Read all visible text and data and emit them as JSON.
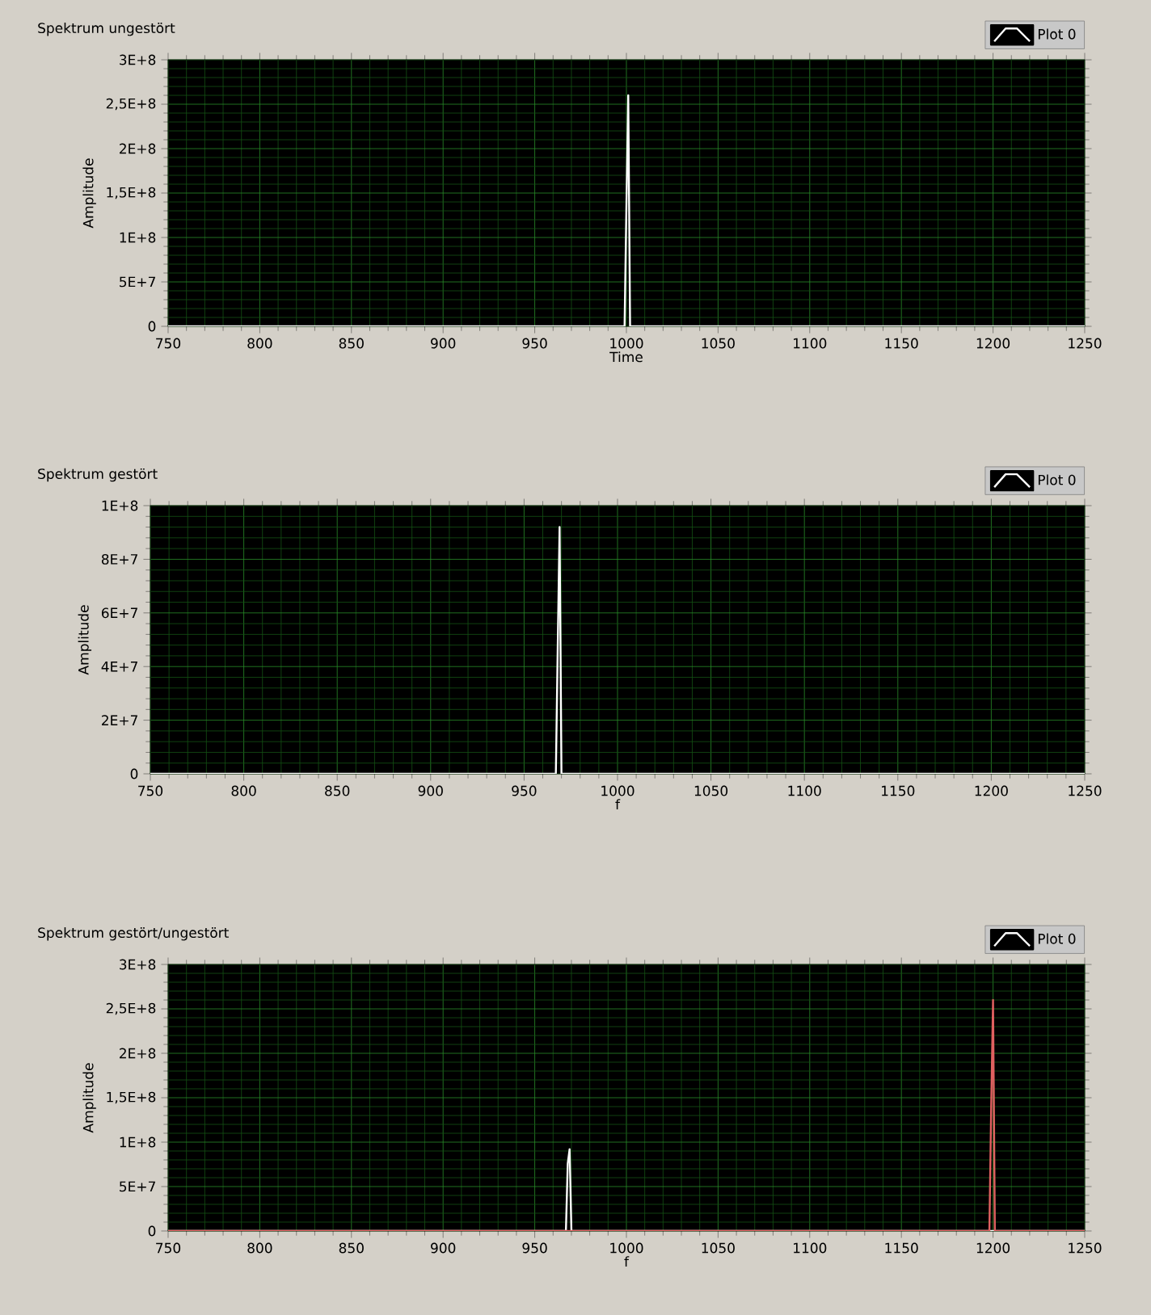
{
  "chart_data": [
    {
      "type": "line",
      "title": "Spektrum ungestört",
      "xlabel": "Time",
      "ylabel": "Amplitude",
      "grid": true,
      "legend": "top right",
      "xlim": [
        750,
        1250
      ],
      "ylim": [
        0,
        300000000
      ],
      "xticks": [
        750,
        {
          "value": 760,
          "label": null
        },
        {
          "value": 770,
          "label": null
        },
        {
          "value": 780,
          "label": null
        },
        {
          "value": 790,
          "label": null
        },
        800,
        {
          "value": 810,
          "label": null
        },
        {
          "value": 820,
          "label": null
        },
        {
          "value": 830,
          "label": null
        },
        {
          "value": 840,
          "label": null
        },
        850,
        {
          "value": 860,
          "label": null
        },
        {
          "value": 870,
          "label": null
        },
        {
          "value": 880,
          "label": null
        },
        {
          "value": 890,
          "label": null
        },
        900,
        {
          "value": 910,
          "label": null
        },
        {
          "value": 920,
          "label": null
        },
        {
          "value": 930,
          "label": null
        },
        {
          "value": 940,
          "label": null
        },
        950,
        {
          "value": 960,
          "label": null
        },
        {
          "value": 970,
          "label": null
        },
        {
          "value": 980,
          "label": null
        },
        {
          "value": 990,
          "label": null
        },
        1000,
        {
          "value": 1010,
          "label": null
        },
        {
          "value": 1020,
          "label": null
        },
        {
          "value": 1030,
          "label": null
        },
        {
          "value": 1040,
          "label": null
        },
        1050,
        {
          "value": 1060,
          "label": null
        },
        {
          "value": 1070,
          "label": null
        },
        {
          "value": 1080,
          "label": null
        },
        {
          "value": 1090,
          "label": null
        },
        1100,
        {
          "value": 1110,
          "label": null
        },
        {
          "value": 1120,
          "label": null
        },
        {
          "value": 1130,
          "label": null
        },
        {
          "value": 1140,
          "label": null
        },
        1150,
        {
          "value": 1160,
          "label": null
        },
        {
          "value": 1170,
          "label": null
        },
        {
          "value": 1180,
          "label": null
        },
        {
          "value": 1190,
          "label": null
        },
        1200,
        {
          "value": 1210,
          "label": null
        },
        {
          "value": 1220,
          "label": null
        },
        {
          "value": 1230,
          "label": null
        },
        {
          "value": 1240,
          "label": null
        },
        1250
      ],
      "yticks": [
        0,
        {
          "value": 10000000,
          "label": null
        },
        {
          "value": 20000000,
          "label": null
        },
        {
          "value": 30000000,
          "label": null
        },
        {
          "value": 40000000,
          "label": null
        },
        {
          "value": 50000000,
          "label": "5E+7"
        },
        {
          "value": 60000000,
          "label": null
        },
        {
          "value": 70000000,
          "label": null
        },
        {
          "value": 80000000,
          "label": null
        },
        {
          "value": 90000000,
          "label": null
        },
        {
          "value": 100000000,
          "label": "1E+8"
        },
        {
          "value": 110000000,
          "label": null
        },
        {
          "value": 120000000,
          "label": null
        },
        {
          "value": 130000000,
          "label": null
        },
        {
          "value": 140000000,
          "label": null
        },
        {
          "value": 150000000,
          "label": "1,5E+8"
        },
        {
          "value": 160000000,
          "label": null
        },
        {
          "value": 170000000,
          "label": null
        },
        {
          "value": 180000000,
          "label": null
        },
        {
          "value": 190000000,
          "label": null
        },
        {
          "value": 200000000,
          "label": "2E+8"
        },
        {
          "value": 210000000,
          "label": null
        },
        {
          "value": 220000000,
          "label": null
        },
        {
          "value": 230000000,
          "label": null
        },
        {
          "value": 240000000,
          "label": null
        },
        {
          "value": 250000000,
          "label": "2,5E+8"
        },
        {
          "value": 260000000,
          "label": null
        },
        {
          "value": 270000000,
          "label": null
        },
        {
          "value": 280000000,
          "label": null
        },
        {
          "value": 290000000,
          "label": null
        },
        {
          "value": 300000000,
          "label": "3E+8"
        }
      ],
      "series": [
        {
          "name": "Plot 0",
          "color": "#ffffff",
          "x": [
            750,
            999,
            1000,
            1001,
            1002,
            1250
          ],
          "values": [
            0,
            0,
            135000000,
            260000000,
            0,
            0
          ]
        }
      ]
    },
    {
      "type": "line",
      "title": "Spektrum gestört",
      "xlabel": "f",
      "ylabel": "Amplitude",
      "grid": true,
      "legend": "top right",
      "xlim": [
        750,
        1250
      ],
      "ylim": [
        0,
        100000000
      ],
      "xticks": [
        750,
        {
          "value": 760,
          "label": null
        },
        {
          "value": 770,
          "label": null
        },
        {
          "value": 780,
          "label": null
        },
        {
          "value": 790,
          "label": null
        },
        800,
        {
          "value": 810,
          "label": null
        },
        {
          "value": 820,
          "label": null
        },
        {
          "value": 830,
          "label": null
        },
        {
          "value": 840,
          "label": null
        },
        850,
        {
          "value": 860,
          "label": null
        },
        {
          "value": 870,
          "label": null
        },
        {
          "value": 880,
          "label": null
        },
        {
          "value": 890,
          "label": null
        },
        900,
        {
          "value": 910,
          "label": null
        },
        {
          "value": 920,
          "label": null
        },
        {
          "value": 930,
          "label": null
        },
        {
          "value": 940,
          "label": null
        },
        950,
        {
          "value": 960,
          "label": null
        },
        {
          "value": 970,
          "label": null
        },
        {
          "value": 980,
          "label": null
        },
        {
          "value": 990,
          "label": null
        },
        1000,
        {
          "value": 1010,
          "label": null
        },
        {
          "value": 1020,
          "label": null
        },
        {
          "value": 1030,
          "label": null
        },
        {
          "value": 1040,
          "label": null
        },
        1050,
        {
          "value": 1060,
          "label": null
        },
        {
          "value": 1070,
          "label": null
        },
        {
          "value": 1080,
          "label": null
        },
        {
          "value": 1090,
          "label": null
        },
        1100,
        {
          "value": 1110,
          "label": null
        },
        {
          "value": 1120,
          "label": null
        },
        {
          "value": 1130,
          "label": null
        },
        {
          "value": 1140,
          "label": null
        },
        1150,
        {
          "value": 1160,
          "label": null
        },
        {
          "value": 1170,
          "label": null
        },
        {
          "value": 1180,
          "label": null
        },
        {
          "value": 1190,
          "label": null
        },
        1200,
        {
          "value": 1210,
          "label": null
        },
        {
          "value": 1220,
          "label": null
        },
        {
          "value": 1230,
          "label": null
        },
        {
          "value": 1240,
          "label": null
        },
        1250
      ],
      "yticks": [
        0,
        {
          "value": 4000000,
          "label": null
        },
        {
          "value": 8000000,
          "label": null
        },
        {
          "value": 12000000,
          "label": null
        },
        {
          "value": 16000000,
          "label": null
        },
        {
          "value": 20000000,
          "label": "2E+7"
        },
        {
          "value": 24000000,
          "label": null
        },
        {
          "value": 28000000,
          "label": null
        },
        {
          "value": 32000000,
          "label": null
        },
        {
          "value": 36000000,
          "label": null
        },
        {
          "value": 40000000,
          "label": "4E+7"
        },
        {
          "value": 44000000,
          "label": null
        },
        {
          "value": 48000000,
          "label": null
        },
        {
          "value": 52000000,
          "label": null
        },
        {
          "value": 56000000,
          "label": null
        },
        {
          "value": 60000000,
          "label": "6E+7"
        },
        {
          "value": 64000000,
          "label": null
        },
        {
          "value": 68000000,
          "label": null
        },
        {
          "value": 72000000,
          "label": null
        },
        {
          "value": 76000000,
          "label": null
        },
        {
          "value": 80000000,
          "label": "8E+7"
        },
        {
          "value": 84000000,
          "label": null
        },
        {
          "value": 88000000,
          "label": null
        },
        {
          "value": 92000000,
          "label": null
        },
        {
          "value": 96000000,
          "label": null
        },
        {
          "value": 100000000,
          "label": "1E+8"
        }
      ],
      "series": [
        {
          "name": "Plot 0",
          "color": "#ffffff",
          "x": [
            750,
            967,
            968,
            969,
            970,
            1250
          ],
          "values": [
            0,
            0,
            47000000,
            92000000,
            0,
            0
          ]
        }
      ]
    },
    {
      "type": "line",
      "title": "Spektrum gestört/ungestört",
      "xlabel": "f",
      "ylabel": "Amplitude",
      "grid": true,
      "legend": "top right",
      "xlim": [
        750,
        1250
      ],
      "ylim": [
        0,
        300000000
      ],
      "xticks": [
        750,
        {
          "value": 760,
          "label": null
        },
        {
          "value": 770,
          "label": null
        },
        {
          "value": 780,
          "label": null
        },
        {
          "value": 790,
          "label": null
        },
        800,
        {
          "value": 810,
          "label": null
        },
        {
          "value": 820,
          "label": null
        },
        {
          "value": 830,
          "label": null
        },
        {
          "value": 840,
          "label": null
        },
        850,
        {
          "value": 860,
          "label": null
        },
        {
          "value": 870,
          "label": null
        },
        {
          "value": 880,
          "label": null
        },
        {
          "value": 890,
          "label": null
        },
        900,
        {
          "value": 910,
          "label": null
        },
        {
          "value": 920,
          "label": null
        },
        {
          "value": 930,
          "label": null
        },
        {
          "value": 940,
          "label": null
        },
        950,
        {
          "value": 960,
          "label": null
        },
        {
          "value": 970,
          "label": null
        },
        {
          "value": 980,
          "label": null
        },
        {
          "value": 990,
          "label": null
        },
        1000,
        {
          "value": 1010,
          "label": null
        },
        {
          "value": 1020,
          "label": null
        },
        {
          "value": 1030,
          "label": null
        },
        {
          "value": 1040,
          "label": null
        },
        1050,
        {
          "value": 1060,
          "label": null
        },
        {
          "value": 1070,
          "label": null
        },
        {
          "value": 1080,
          "label": null
        },
        {
          "value": 1090,
          "label": null
        },
        1100,
        {
          "value": 1110,
          "label": null
        },
        {
          "value": 1120,
          "label": null
        },
        {
          "value": 1130,
          "label": null
        },
        {
          "value": 1140,
          "label": null
        },
        1150,
        {
          "value": 1160,
          "label": null
        },
        {
          "value": 1170,
          "label": null
        },
        {
          "value": 1180,
          "label": null
        },
        {
          "value": 1190,
          "label": null
        },
        1200,
        {
          "value": 1210,
          "label": null
        },
        {
          "value": 1220,
          "label": null
        },
        {
          "value": 1230,
          "label": null
        },
        {
          "value": 1240,
          "label": null
        },
        1250
      ],
      "yticks": [
        0,
        {
          "value": 10000000,
          "label": null
        },
        {
          "value": 20000000,
          "label": null
        },
        {
          "value": 30000000,
          "label": null
        },
        {
          "value": 40000000,
          "label": null
        },
        {
          "value": 50000000,
          "label": "5E+7"
        },
        {
          "value": 60000000,
          "label": null
        },
        {
          "value": 70000000,
          "label": null
        },
        {
          "value": 80000000,
          "label": null
        },
        {
          "value": 90000000,
          "label": null
        },
        {
          "value": 100000000,
          "label": "1E+8"
        },
        {
          "value": 110000000,
          "label": null
        },
        {
          "value": 120000000,
          "label": null
        },
        {
          "value": 130000000,
          "label": null
        },
        {
          "value": 140000000,
          "label": null
        },
        {
          "value": 150000000,
          "label": "1,5E+8"
        },
        {
          "value": 160000000,
          "label": null
        },
        {
          "value": 170000000,
          "label": null
        },
        {
          "value": 180000000,
          "label": null
        },
        {
          "value": 190000000,
          "label": null
        },
        {
          "value": 200000000,
          "label": "2E+8"
        },
        {
          "value": 210000000,
          "label": null
        },
        {
          "value": 220000000,
          "label": null
        },
        {
          "value": 230000000,
          "label": null
        },
        {
          "value": 240000000,
          "label": null
        },
        {
          "value": 250000000,
          "label": "2,5E+8"
        },
        {
          "value": 260000000,
          "label": null
        },
        {
          "value": 270000000,
          "label": null
        },
        {
          "value": 280000000,
          "label": null
        },
        {
          "value": 290000000,
          "label": null
        },
        {
          "value": 300000000,
          "label": "3E+8"
        }
      ],
      "series": [
        {
          "name": "Plot 0",
          "color": "#ffffff",
          "x": [
            750,
            967,
            968,
            969,
            970,
            1250
          ],
          "values": [
            0,
            0,
            76000000,
            92000000,
            0,
            0
          ]
        },
        {
          "color": "#e06060",
          "x": [
            750,
            1198,
            1199,
            1200,
            1201,
            1250
          ],
          "values": [
            0,
            0,
            140000000,
            260000000,
            0,
            0
          ]
        }
      ]
    }
  ]
}
